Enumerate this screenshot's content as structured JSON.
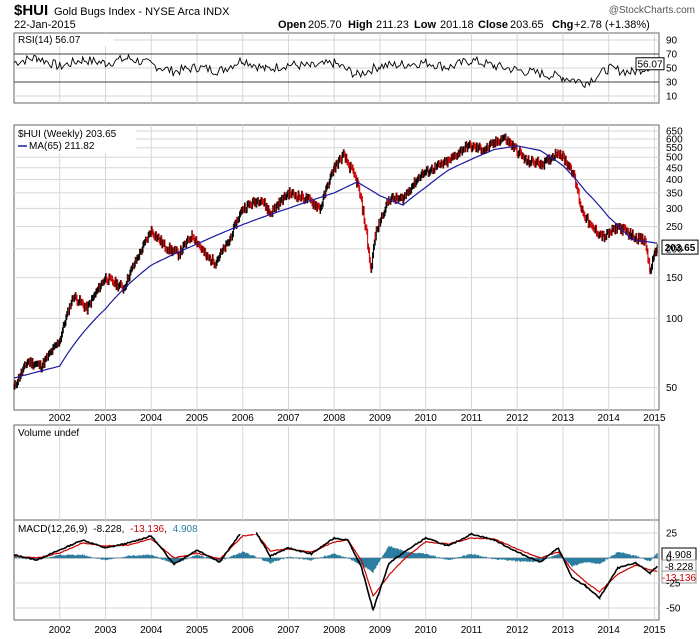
{
  "header": {
    "symbol": "$HUI",
    "name": "Gold Bugs Index - NYSE Arca INDX",
    "date": "22-Jan-2015",
    "open_label": "Open",
    "open": "205.70",
    "high_label": "High",
    "high": "211.23",
    "low_label": "Low",
    "low": "201.18",
    "close_label": "Close",
    "close": "203.65",
    "chg_label": "Chg",
    "chg": "+2.78 (+1.38%)",
    "credit": "@StockCharts.com"
  },
  "colors": {
    "price": "#000000",
    "price_down": "#cc0000",
    "ma": "#1a1aa0",
    "rsi": "#000000",
    "rsi_fill": "#6a9a6a",
    "macd": "#000000",
    "signal": "#cc0000",
    "histogram": "#2a7da0",
    "grid": "#d6d6d6",
    "panel_border": "#666666"
  },
  "chart_data": [
    {
      "type": "line",
      "panel": "rsi",
      "label": "RSI(14) 56.07",
      "last_value_tag": "56.07",
      "ylim": [
        0,
        100
      ],
      "y_ticks": [
        "90",
        "70",
        "50",
        "30",
        "10"
      ],
      "reference_lines": [
        70,
        30
      ],
      "x": [
        2001.0,
        2001.5,
        2002.0,
        2002.5,
        2003.0,
        2003.5,
        2004.0,
        2004.5,
        2005.0,
        2005.5,
        2006.0,
        2006.5,
        2007.0,
        2007.5,
        2008.0,
        2008.5,
        2009.0,
        2009.5,
        2010.0,
        2010.5,
        2011.0,
        2011.5,
        2012.0,
        2012.5,
        2013.0,
        2013.5,
        2014.0,
        2014.5,
        2015.06
      ],
      "values": [
        58,
        65,
        52,
        62,
        57,
        64,
        55,
        45,
        51,
        46,
        62,
        48,
        55,
        52,
        57,
        40,
        53,
        55,
        58,
        51,
        61,
        53,
        47,
        42,
        37,
        29,
        49,
        44,
        56.07
      ]
    },
    {
      "type": "line",
      "panel": "price",
      "title": "$HUI (Weekly) 203.65",
      "scale": "log",
      "ylim": [
        40,
        690
      ],
      "y_ticks": [
        "650",
        "600",
        "550",
        "500",
        "450",
        "400",
        "350",
        "300",
        "250",
        "200",
        "150",
        "100",
        "50"
      ],
      "x_ticks": [
        "2002",
        "2003",
        "2004",
        "2005",
        "2006",
        "2007",
        "2008",
        "2009",
        "2010",
        "2011",
        "2012",
        "2013",
        "2014",
        "2015"
      ],
      "last_value_tag": "203.65",
      "series": [
        {
          "name": "$HUI (Weekly) 203.65",
          "x": [
            2001.0,
            2001.3,
            2001.6,
            2002.0,
            2002.3,
            2002.6,
            2003.0,
            2003.4,
            2003.8,
            2004.0,
            2004.3,
            2004.6,
            2004.9,
            2005.2,
            2005.4,
            2005.7,
            2006.0,
            2006.4,
            2006.6,
            2007.0,
            2007.4,
            2007.7,
            2008.0,
            2008.2,
            2008.5,
            2008.8,
            2008.9,
            2009.2,
            2009.5,
            2009.9,
            2010.2,
            2010.5,
            2010.9,
            2011.3,
            2011.7,
            2011.9,
            2012.2,
            2012.6,
            2012.9,
            2013.2,
            2013.4,
            2013.6,
            2013.9,
            2014.2,
            2014.5,
            2014.8,
            2014.9,
            2015.06
          ],
          "values": [
            50,
            65,
            62,
            80,
            125,
            110,
            150,
            135,
            200,
            240,
            205,
            190,
            230,
            185,
            175,
            215,
            300,
            330,
            285,
            350,
            330,
            300,
            450,
            510,
            390,
            160,
            230,
            330,
            330,
            420,
            450,
            480,
            560,
            540,
            610,
            560,
            480,
            470,
            530,
            440,
            300,
            250,
            225,
            250,
            230,
            215,
            160,
            203.65
          ]
        },
        {
          "name": "MA(65) 211.82",
          "x": [
            2001.0,
            2002.0,
            2003.0,
            2004.0,
            2005.0,
            2006.0,
            2007.0,
            2008.0,
            2008.5,
            2009.0,
            2009.5,
            2010.0,
            2010.5,
            2011.0,
            2011.5,
            2012.0,
            2012.5,
            2013.0,
            2013.5,
            2014.0,
            2014.5,
            2015.06
          ],
          "values": [
            55,
            62,
            110,
            170,
            210,
            255,
            300,
            350,
            390,
            340,
            310,
            370,
            440,
            490,
            540,
            560,
            535,
            460,
            355,
            275,
            220,
            211.82
          ]
        }
      ]
    },
    {
      "type": "bar",
      "panel": "volume",
      "label": "Volume undef"
    },
    {
      "type": "line",
      "panel": "macd",
      "label_prefix": "MACD(12,26,9)",
      "label_values": [
        "-8.228",
        "-13.136",
        "4.908"
      ],
      "ylim": [
        -62,
        38
      ],
      "y_ticks": [
        "25",
        "0",
        "-25",
        "-50"
      ],
      "x_ticks": [
        "2002",
        "2003",
        "2004",
        "2005",
        "2006",
        "2007",
        "2008",
        "2009",
        "2010",
        "2011",
        "2012",
        "2013",
        "2014",
        "2015"
      ],
      "value_tags": [
        "4.908",
        "-8.228",
        "-13.136"
      ],
      "series": [
        {
          "name": "MACD(12,26,9) -8.228",
          "x": [
            2001.0,
            2001.5,
            2002.0,
            2002.5,
            2003.0,
            2003.5,
            2004.0,
            2004.5,
            2005.0,
            2005.5,
            2006.0,
            2006.3,
            2006.6,
            2007.0,
            2007.5,
            2008.0,
            2008.3,
            2008.6,
            2008.85,
            2009.2,
            2009.6,
            2010.0,
            2010.5,
            2011.0,
            2011.5,
            2012.0,
            2012.5,
            2012.9,
            2013.2,
            2013.5,
            2013.8,
            2014.2,
            2014.6,
            2014.9,
            2015.06
          ],
          "values": [
            3,
            -2,
            8,
            18,
            10,
            15,
            22,
            -6,
            8,
            -4,
            28,
            25,
            2,
            10,
            4,
            20,
            18,
            -10,
            -52,
            -5,
            8,
            20,
            12,
            24,
            18,
            6,
            -4,
            10,
            -20,
            -28,
            -40,
            -10,
            -5,
            -15,
            -8.228
          ]
        },
        {
          "name": "MACD signal -13.136",
          "x": [
            2001.0,
            2001.5,
            2002.0,
            2002.5,
            2003.0,
            2003.5,
            2004.0,
            2004.5,
            2005.0,
            2005.5,
            2006.0,
            2006.3,
            2006.6,
            2007.0,
            2007.5,
            2008.0,
            2008.3,
            2008.6,
            2008.85,
            2009.2,
            2009.6,
            2010.0,
            2010.5,
            2011.0,
            2011.5,
            2012.0,
            2012.5,
            2012.9,
            2013.2,
            2013.5,
            2013.8,
            2014.2,
            2014.6,
            2014.9,
            2015.06
          ],
          "values": [
            2,
            0,
            5,
            15,
            12,
            13,
            19,
            0,
            5,
            -1,
            22,
            24,
            7,
            9,
            6,
            16,
            18,
            -3,
            -38,
            -17,
            2,
            16,
            14,
            20,
            19,
            9,
            0,
            6,
            -12,
            -24,
            -34,
            -16,
            -7,
            -12,
            -13.136
          ]
        },
        {
          "name": "MACD histogram 4.908",
          "x": [
            2001.0,
            2001.5,
            2002.0,
            2002.5,
            2003.0,
            2003.5,
            2004.0,
            2004.5,
            2005.0,
            2005.5,
            2006.0,
            2006.3,
            2006.6,
            2007.0,
            2007.5,
            2008.0,
            2008.3,
            2008.6,
            2008.85,
            2009.2,
            2009.6,
            2010.0,
            2010.5,
            2011.0,
            2011.5,
            2012.0,
            2012.5,
            2012.9,
            2013.2,
            2013.5,
            2013.8,
            2014.2,
            2014.6,
            2014.9,
            2015.06
          ],
          "values": [
            1,
            -2,
            3,
            3,
            -2,
            2,
            3,
            -6,
            3,
            -3,
            6,
            1,
            -5,
            1,
            -2,
            4,
            0,
            -7,
            -14,
            12,
            6,
            4,
            -2,
            4,
            -1,
            -3,
            -4,
            4,
            -8,
            -4,
            -6,
            6,
            2,
            -3,
            4.908
          ]
        }
      ]
    }
  ]
}
